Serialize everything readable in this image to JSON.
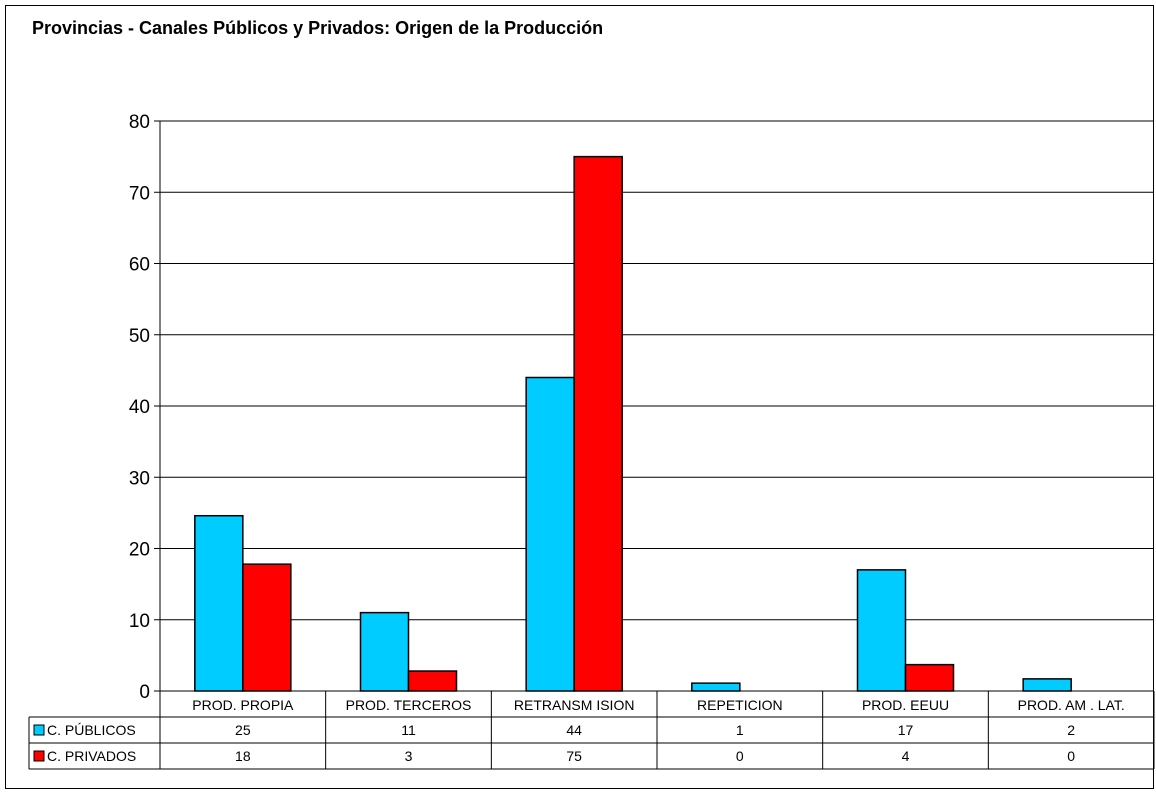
{
  "chart_data": {
    "type": "bar",
    "title": "Provincias - Canales Públicos y Privados: Origen de la Producción",
    "xlabel": "",
    "ylabel": "",
    "categories": [
      "PROD. PROPIA",
      "PROD. TERCEROS",
      "RETRANSM ISION",
      "REPETICION",
      "PROD. EEUU",
      "PROD. AM . LAT."
    ],
    "series": [
      {
        "name": "C. PÚBLICOS",
        "values": [
          24.6,
          11,
          44,
          1.1,
          17,
          1.7
        ],
        "table_values": [
          "25",
          "11",
          "44",
          "1",
          "17",
          "2"
        ],
        "color": "#00CCFF"
      },
      {
        "name": "C. PRIVADOS",
        "values": [
          17.8,
          2.8,
          75,
          0,
          3.7,
          0
        ],
        "table_values": [
          "18",
          "3",
          "75",
          "0",
          "4",
          "0"
        ],
        "color": "#FF0000"
      }
    ],
    "ylim": [
      0,
      80
    ],
    "yticks": [
      0,
      10,
      20,
      30,
      40,
      50,
      60,
      70,
      80
    ],
    "grid": true,
    "legend": "data-table"
  }
}
